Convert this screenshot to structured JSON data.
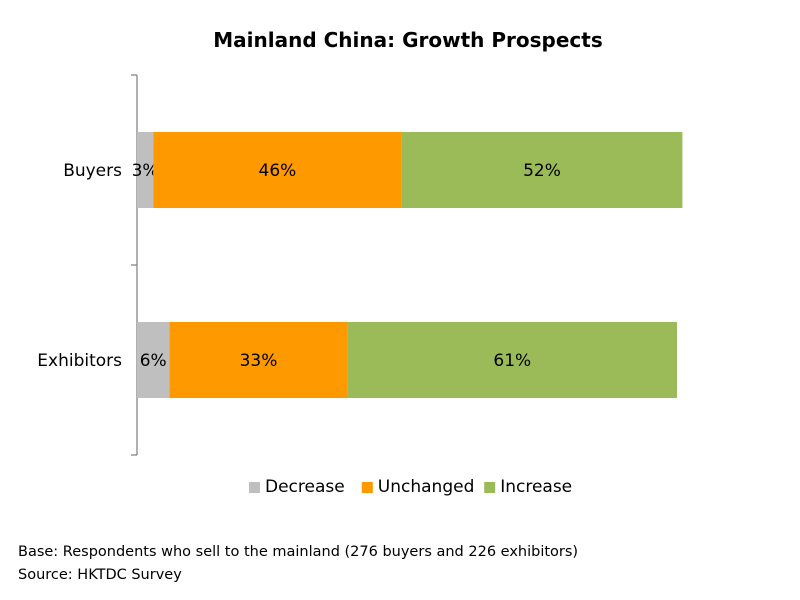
{
  "chart_data": {
    "type": "bar",
    "orientation": "horizontal",
    "stacked": true,
    "title": "Mainland China: Growth Prospects",
    "categories": [
      "Buyers",
      "Exhibitors"
    ],
    "series": [
      {
        "name": "Decrease",
        "values": [
          3,
          6
        ],
        "labels": [
          "3%",
          "6%"
        ],
        "color": "#bfbfbf"
      },
      {
        "name": "Unchanged",
        "values": [
          46,
          33
        ],
        "labels": [
          "46%",
          "33%"
        ],
        "color": "#ff9900"
      },
      {
        "name": "Increase",
        "values": [
          52,
          61
        ],
        "labels": [
          "52%",
          "61%"
        ],
        "color": "#9bbb59"
      }
    ],
    "xlim": [
      0,
      100
    ],
    "grid": false,
    "legend": "bottom"
  },
  "footer": {
    "base": "Base: Respondents who sell to the mainland (276 buyers and 226 exhibitors)",
    "source": "Source: HKTDC Survey"
  }
}
